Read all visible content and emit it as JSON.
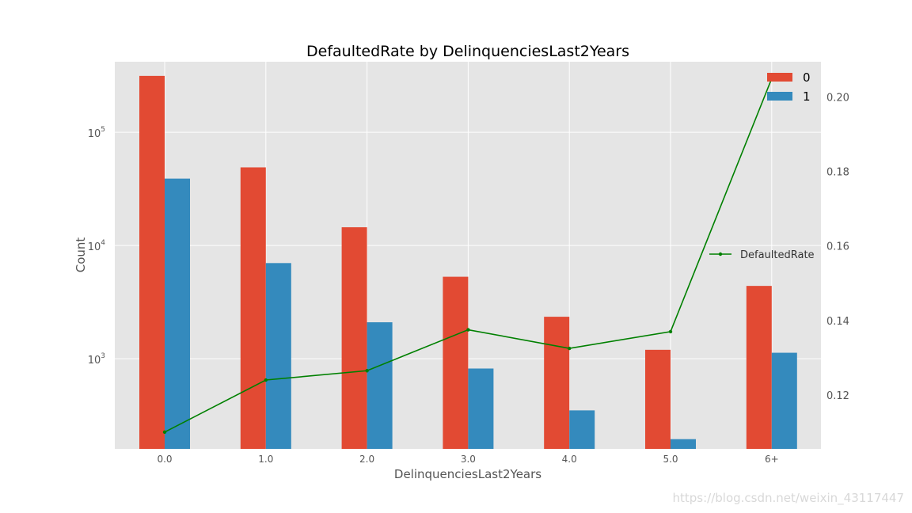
{
  "chart_data": {
    "type": "bar",
    "title": "DefaultedRate by DelinquenciesLast2Years",
    "xlabel": "DelinquenciesLast2Years",
    "ylabel": "Count",
    "y_scale": "log",
    "ylim": [
      160,
      420000
    ],
    "y_ticks": [
      1000,
      10000,
      100000
    ],
    "y_tick_labels": [
      {
        "base": "10",
        "exp": "3"
      },
      {
        "base": "10",
        "exp": "4"
      },
      {
        "base": "10",
        "exp": "5"
      }
    ],
    "categories": [
      "0.0",
      "1.0",
      "2.0",
      "3.0",
      "4.0",
      "5.0",
      "6+"
    ],
    "series": [
      {
        "name": "0",
        "color": "#e24a33",
        "values": [
          315000,
          49000,
          14500,
          5300,
          2350,
          1200,
          4400
        ]
      },
      {
        "name": "1",
        "color": "#348abd",
        "values": [
          39000,
          7000,
          2100,
          820,
          350,
          195,
          1130
        ]
      }
    ],
    "secondary": {
      "type": "line",
      "name": "DefaultedRate",
      "color": "#008000",
      "values": [
        0.11,
        0.124,
        0.1265,
        0.1375,
        0.1325,
        0.137,
        0.205
      ],
      "ylim": [
        0.1055,
        0.2095
      ],
      "ticks": [
        0.12,
        0.14,
        0.16,
        0.18,
        0.2
      ],
      "tick_labels": [
        "0.12",
        "0.14",
        "0.16",
        "0.18",
        "0.20"
      ]
    },
    "legend_bars_position": "top-right",
    "legend_line_position": "center-right",
    "grid": true,
    "style": "ggplot"
  },
  "watermark": "https://blog.csdn.net/weixin_43117447"
}
